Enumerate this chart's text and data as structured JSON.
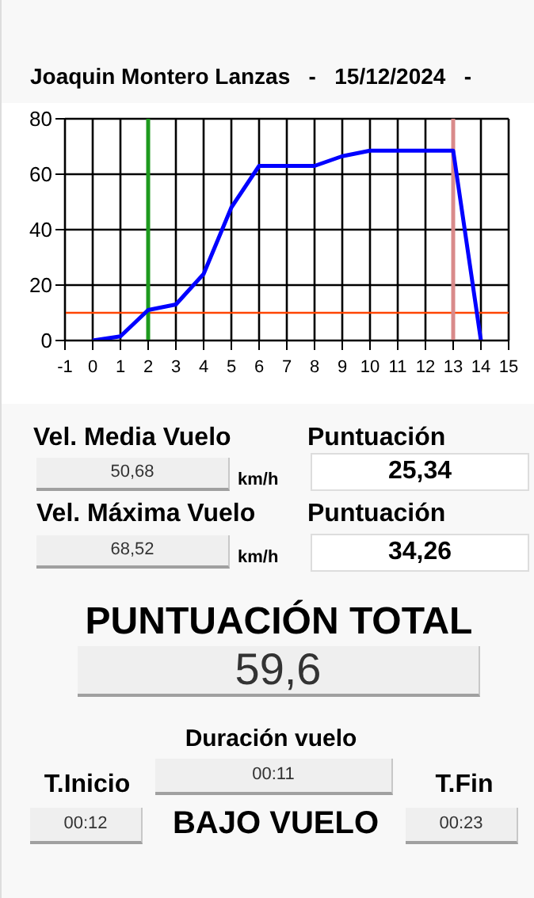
{
  "chart_data": [
    {
      "type": "line",
      "title": "Joaquin Montero Lanzas   -   15/12/2024   -",
      "x": [
        0,
        1,
        2,
        3,
        4,
        5,
        6,
        7,
        8,
        9,
        10,
        11,
        12,
        13,
        14
      ],
      "series": [
        {
          "color": "#0000ff",
          "values": [
            0,
            1.5,
            11,
            13,
            24,
            48,
            63,
            63,
            63,
            66.5,
            68.5,
            68.5,
            68.5,
            68.5,
            0
          ]
        }
      ],
      "xlim": [
        -1,
        15
      ],
      "xticks": [
        -1,
        0,
        1,
        2,
        3,
        4,
        5,
        6,
        7,
        8,
        9,
        10,
        11,
        12,
        13,
        14,
        15
      ],
      "ylim": [
        0,
        80
      ],
      "yticks": [
        0,
        20,
        40,
        60,
        80
      ],
      "grid": true,
      "marker": "none",
      "line_style": "solid",
      "ref_lines": [
        {
          "axis": "y",
          "value": 10,
          "color": "#ff4500"
        },
        {
          "axis": "x",
          "value": 2,
          "color": "#1e9a1e"
        },
        {
          "axis": "x",
          "value": 13,
          "color": "#d98a8a"
        }
      ]
    },
    {
      "type": "other",
      "annotations": [
        "Vel. Media Vuelo",
        "50,68",
        "km/h",
        "Puntuación",
        "25,34",
        "Vel. Máxima Vuelo",
        "68,52",
        "km/h",
        "Puntuación",
        "34,26",
        "PUNTUACIÓN TOTAL",
        "59,6",
        "Duración vuelo",
        "00:11",
        "T.Inicio",
        "00:12",
        "BAJO VUELO",
        "T.Fin",
        "00:23"
      ]
    }
  ]
}
